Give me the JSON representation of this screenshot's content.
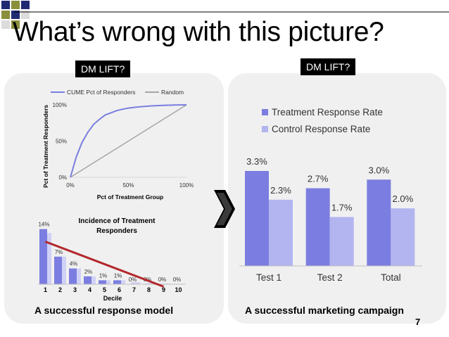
{
  "slide": {
    "title": "What’s wrong with this picture?",
    "tag_left": "DM LIFT?",
    "tag_right": "DM LIFT?",
    "caption_left": "A successful response model",
    "caption_right": "A successful marketing campaign",
    "page_number": "7"
  },
  "colors": {
    "accent_blue": "#7b7ee0",
    "light_blue": "#b3b5f1",
    "random_gray": "#a6a6a6",
    "trend_red": "#b3272b",
    "deco_olive": "#8a8f3c",
    "deco_navy": "#1f2a73"
  },
  "chart_data": [
    {
      "type": "line",
      "title": "",
      "ylabel": "Pct of Treatment Responders",
      "xlabel": "Pct of Treatment Group",
      "x_ticks": [
        "0%",
        "50%",
        "100%"
      ],
      "y_ticks": [
        "0%",
        "50%",
        "100%"
      ],
      "xlim": [
        0,
        100
      ],
      "ylim": [
        0,
        100
      ],
      "legend_position": "top",
      "series": [
        {
          "name": "CUME Pct of Responders",
          "x": [
            0,
            5,
            10,
            15,
            20,
            25,
            30,
            35,
            40,
            45,
            50,
            55,
            60,
            65,
            70,
            75,
            80,
            85,
            90,
            95,
            100
          ],
          "y": [
            0,
            28,
            48,
            62,
            73,
            80,
            86,
            89,
            92,
            94,
            95.5,
            96.5,
            97.3,
            98,
            98.5,
            98.9,
            99.2,
            99.5,
            99.7,
            99.9,
            100
          ]
        },
        {
          "name": "Random",
          "x": [
            0,
            100
          ],
          "y": [
            0,
            100
          ]
        }
      ]
    },
    {
      "type": "bar",
      "title": "Incidence of Treatment Responders",
      "xlabel": "Decile",
      "ylabel": "",
      "categories": [
        "1",
        "2",
        "3",
        "4",
        "5",
        "6",
        "7",
        "8",
        "9",
        "10"
      ],
      "values": [
        14,
        7,
        4,
        2,
        1,
        1,
        0,
        0,
        0,
        0
      ],
      "back_values": [
        13,
        7,
        4,
        2,
        1,
        1,
        0.5,
        0.3,
        0.2,
        0
      ],
      "data_labels": [
        "14%",
        "7%",
        "4%",
        "2%",
        "1%",
        "1%",
        "0%",
        "0%",
        "0%",
        "0%"
      ],
      "ylim": [
        0,
        15
      ],
      "trendline": {
        "x_start": 1,
        "y_start": 10.8,
        "x_end": 9,
        "y_end": -0.6
      }
    },
    {
      "type": "bar",
      "title": "",
      "categories": [
        "Test 1",
        "Test 2",
        "Total"
      ],
      "series": [
        {
          "name": "Treatment Response Rate",
          "values": [
            3.3,
            2.7,
            3.0
          ],
          "labels": [
            "3.3%",
            "2.7%",
            "3.0%"
          ]
        },
        {
          "name": "Control Response Rate",
          "values": [
            2.3,
            1.7,
            2.0
          ],
          "labels": [
            "2.3%",
            "1.7%",
            "2.0%"
          ]
        }
      ],
      "ylim": [
        0,
        4.4
      ],
      "legend_position": "top-left"
    }
  ]
}
